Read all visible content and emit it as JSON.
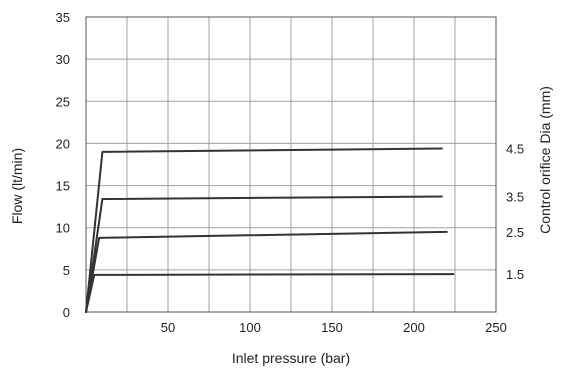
{
  "chart_data": {
    "type": "line",
    "xlabel": "Inlet pressure (bar)",
    "ylabel": "Flow (lt/min)",
    "y2label": "Control orifice Dia (mm)",
    "xlim": [
      0,
      250
    ],
    "ylim": [
      0,
      35
    ],
    "xticks": [
      "50",
      "100",
      "150",
      "200",
      "250"
    ],
    "yticks": [
      "0",
      "5",
      "10",
      "15",
      "20",
      "25",
      "30",
      "35"
    ],
    "grid": true,
    "series": [
      {
        "name": "4.5",
        "x": [
          0,
          10,
          217
        ],
        "y": [
          0,
          19,
          19.4
        ]
      },
      {
        "name": "3.5",
        "x": [
          0,
          10,
          217
        ],
        "y": [
          0,
          13.4,
          13.7
        ]
      },
      {
        "name": "2.5",
        "x": [
          0,
          8,
          220
        ],
        "y": [
          0,
          8.8,
          9.5
        ]
      },
      {
        "name": "1.5",
        "x": [
          0,
          5,
          224
        ],
        "y": [
          0,
          4.4,
          4.5
        ]
      }
    ]
  }
}
